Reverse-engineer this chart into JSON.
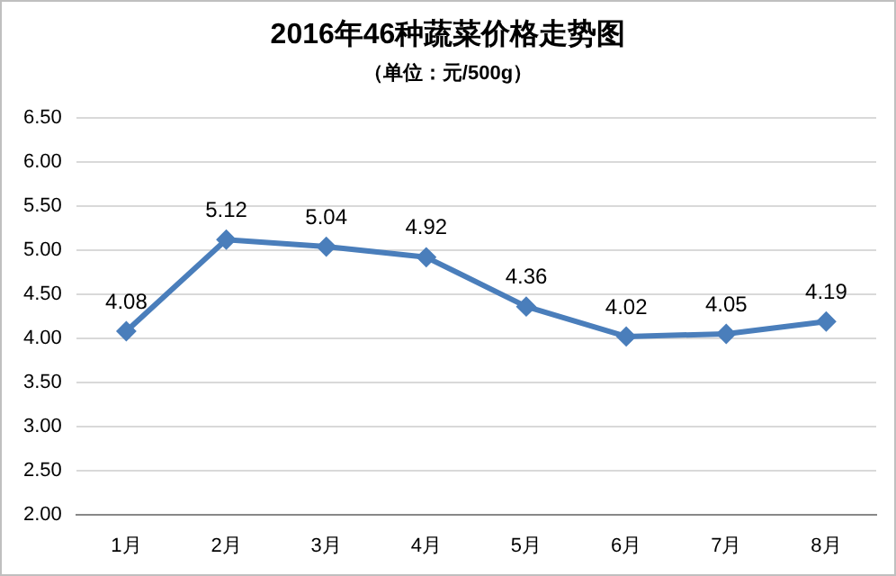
{
  "chart_data": {
    "type": "line",
    "title": "2016年46种蔬菜价格走势图",
    "subtitle": "（单位：元/500g）",
    "categories": [
      "1月",
      "2月",
      "3月",
      "4月",
      "5月",
      "6月",
      "7月",
      "8月"
    ],
    "series": [
      {
        "color": "#4a7ebb",
        "values": [
          4.08,
          5.12,
          5.04,
          4.92,
          4.36,
          4.02,
          4.05,
          4.19
        ]
      }
    ],
    "ylim": [
      2,
      6.5
    ],
    "yticks": [
      {
        "value": 2,
        "label": "2.00"
      },
      {
        "value": 2.5,
        "label": "2.50"
      },
      {
        "value": 3,
        "label": "3.00"
      },
      {
        "value": 3.5,
        "label": "3.50"
      },
      {
        "value": 4,
        "label": "4.00"
      },
      {
        "value": 4.5,
        "label": "4.50"
      },
      {
        "value": 5,
        "label": "5.00"
      },
      {
        "value": 5.5,
        "label": "5.50"
      },
      {
        "value": 6,
        "label": "6.00"
      },
      {
        "value": 6.5,
        "label": "6.50"
      }
    ],
    "grid": "y",
    "marker": "diamond",
    "line_style": "solid",
    "data_labels": true,
    "legend": false
  }
}
